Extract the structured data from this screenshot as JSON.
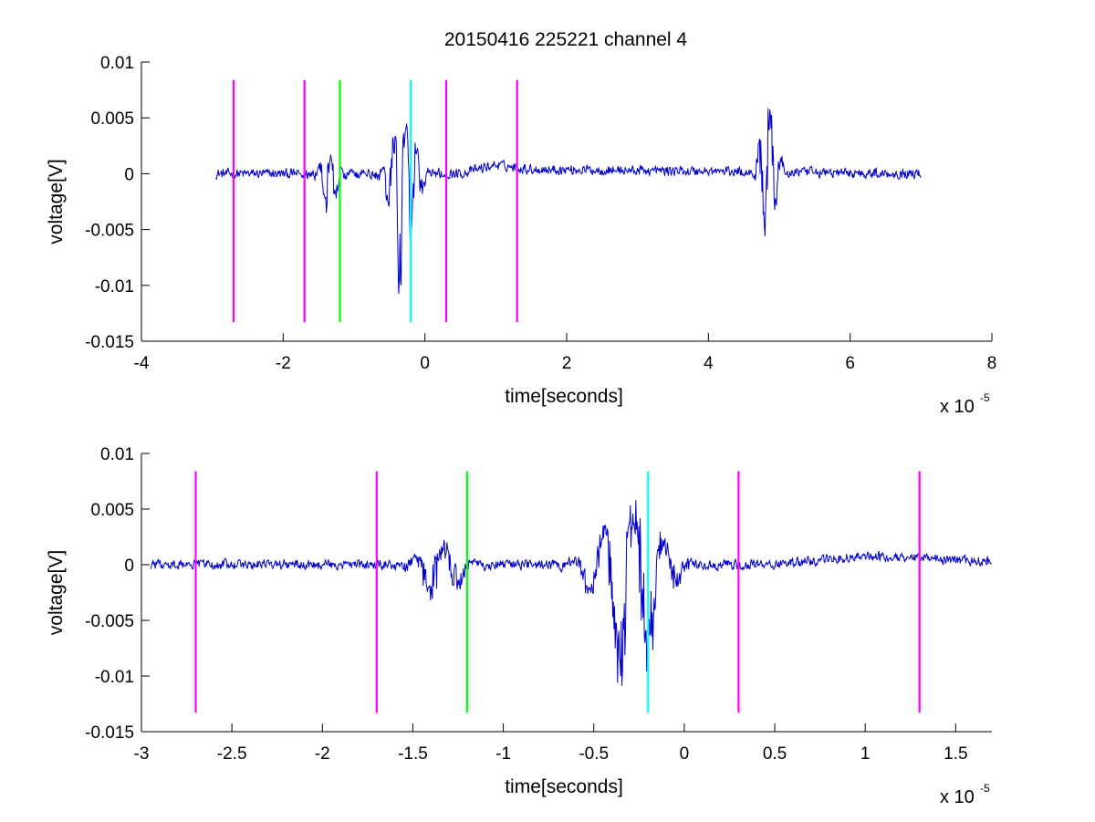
{
  "figure_title": "20150416 225221 channel 4",
  "chart_data": [
    {
      "type": "line",
      "title": "20150416 225221 channel 4",
      "xlabel": "time[seconds]",
      "ylabel": "voltage[V]",
      "x_multiplier_label": "x 10",
      "x_multiplier_exponent": "-5",
      "xlim": [
        -4,
        8
      ],
      "ylim": [
        -0.015,
        0.01
      ],
      "x_units_scale": 1e-05,
      "xticks": [
        -4,
        -2,
        0,
        2,
        4,
        6,
        8
      ],
      "xtick_labels": [
        "-4",
        "-2",
        "0",
        "2",
        "4",
        "6",
        "8"
      ],
      "yticks": [
        0.01,
        0.005,
        0,
        -0.005,
        -0.01,
        -0.015
      ],
      "ytick_labels": [
        "0.01",
        "0.005",
        "0",
        "-0.005",
        "-0.01",
        "-0.015"
      ],
      "grid": false,
      "series": [
        {
          "color": "#0000cc",
          "x_range": [
            -2.95,
            7.0
          ],
          "baseline": 0,
          "noise_amplitude": 0.0006,
          "bursts": [
            {
              "center": -1.35,
              "width": 0.25,
              "peak_max": 0.002,
              "peak_min": -0.0038
            },
            {
              "center": -0.3,
              "width": 0.35,
              "peak_max": 0.006,
              "peak_min": -0.012
            },
            {
              "center": 4.85,
              "width": 0.25,
              "peak_max": 0.0078,
              "peak_min": -0.007
            }
          ],
          "drift": [
            {
              "x": -2.95,
              "y": 0
            },
            {
              "x": 0.5,
              "y": 0
            },
            {
              "x": 1.0,
              "y": 0.0008
            },
            {
              "x": 1.5,
              "y": 0.0004
            },
            {
              "x": 7.0,
              "y": 0
            }
          ]
        }
      ],
      "vertical_markers": [
        {
          "x": -2.7,
          "color": "#ff00ff",
          "y_range": [
            -0.0133,
            0.0084
          ]
        },
        {
          "x": -1.7,
          "color": "#ff00ff",
          "y_range": [
            -0.0133,
            0.0084
          ]
        },
        {
          "x": -1.2,
          "color": "#00ff00",
          "y_range": [
            -0.0133,
            0.0084
          ]
        },
        {
          "x": -0.2,
          "color": "#00ffff",
          "y_range": [
            -0.0133,
            0.0084
          ]
        },
        {
          "x": 0.3,
          "color": "#ff00ff",
          "y_range": [
            -0.0133,
            0.0084
          ]
        },
        {
          "x": 1.3,
          "color": "#ff00ff",
          "y_range": [
            -0.0133,
            0.0084
          ]
        }
      ]
    },
    {
      "type": "line",
      "title": "",
      "xlabel": "time[seconds]",
      "ylabel": "voltage[V]",
      "x_multiplier_label": "x 10",
      "x_multiplier_exponent": "-5",
      "xlim": [
        -3.0,
        1.7
      ],
      "ylim": [
        -0.015,
        0.01
      ],
      "x_units_scale": 1e-05,
      "xticks": [
        -3,
        -2.5,
        -2,
        -1.5,
        -1,
        -0.5,
        0,
        0.5,
        1,
        1.5
      ],
      "xtick_labels": [
        "-3",
        "-2.5",
        "-2",
        "-1.5",
        "-1",
        "-0.5",
        "0",
        "0.5",
        "1",
        "1.5"
      ],
      "yticks": [
        0.01,
        0.005,
        0,
        -0.005,
        -0.01,
        -0.015
      ],
      "ytick_labels": [
        "0.01",
        "0.005",
        "0",
        "-0.005",
        "-0.01",
        "-0.015"
      ],
      "grid": false,
      "series": [
        {
          "color": "#0000cc",
          "x_range": [
            -2.95,
            1.7
          ],
          "baseline": 0,
          "noise_amplitude": 0.0006,
          "bursts": [
            {
              "center": -1.35,
              "width": 0.25,
              "peak_max": 0.002,
              "peak_min": -0.0038
            },
            {
              "center": -0.3,
              "width": 0.35,
              "peak_max": 0.006,
              "peak_min": -0.012
            }
          ],
          "drift": [
            {
              "x": -2.95,
              "y": 0
            },
            {
              "x": 0.5,
              "y": 0
            },
            {
              "x": 1.0,
              "y": 0.0008
            },
            {
              "x": 1.5,
              "y": 0.0004
            },
            {
              "x": 1.7,
              "y": 0.0003
            }
          ]
        }
      ],
      "vertical_markers": [
        {
          "x": -2.7,
          "color": "#ff00ff",
          "y_range": [
            -0.0133,
            0.0084
          ]
        },
        {
          "x": -1.7,
          "color": "#ff00ff",
          "y_range": [
            -0.0133,
            0.0084
          ]
        },
        {
          "x": -1.2,
          "color": "#00ff00",
          "y_range": [
            -0.0133,
            0.0084
          ]
        },
        {
          "x": -0.2,
          "color": "#00ffff",
          "y_range": [
            -0.0133,
            0.0084
          ]
        },
        {
          "x": 0.3,
          "color": "#ff00ff",
          "y_range": [
            -0.0133,
            0.0084
          ]
        },
        {
          "x": 1.3,
          "color": "#ff00ff",
          "y_range": [
            -0.0133,
            0.0084
          ]
        }
      ]
    }
  ]
}
